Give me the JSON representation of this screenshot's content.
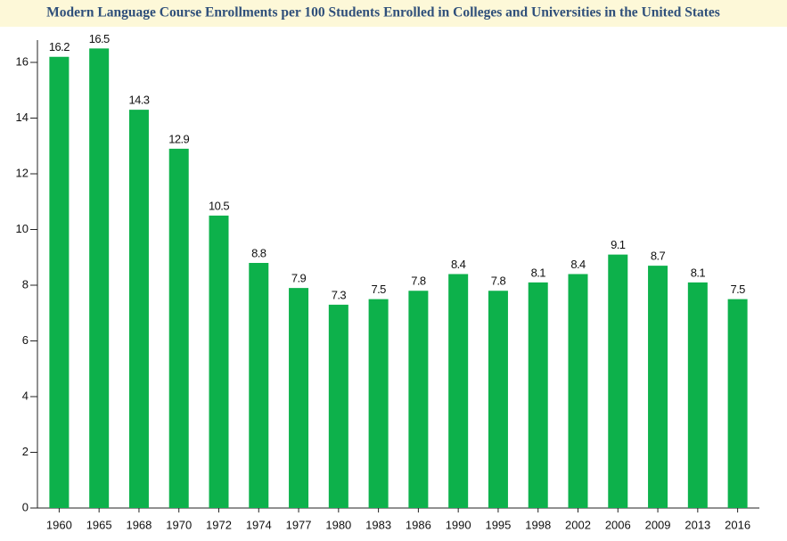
{
  "chart_data": {
    "type": "bar",
    "title": "Modern Language Course Enrollments per 100 Students Enrolled in Colleges and Universities in the United States",
    "categories": [
      "1960",
      "1965",
      "1968",
      "1970",
      "1972",
      "1974",
      "1977",
      "1980",
      "1983",
      "1986",
      "1990",
      "1995",
      "1998",
      "2002",
      "2006",
      "2009",
      "2013",
      "2016"
    ],
    "values": [
      16.2,
      16.5,
      14.3,
      12.9,
      10.5,
      8.8,
      7.9,
      7.3,
      7.5,
      7.8,
      8.4,
      7.8,
      8.1,
      8.4,
      9.1,
      8.7,
      8.1,
      7.5
    ],
    "color": "#0db14b",
    "ylim": [
      0,
      16.8
    ],
    "yticks": [
      0,
      2,
      4,
      6,
      8,
      10,
      12,
      14,
      16
    ],
    "grid": false
  }
}
